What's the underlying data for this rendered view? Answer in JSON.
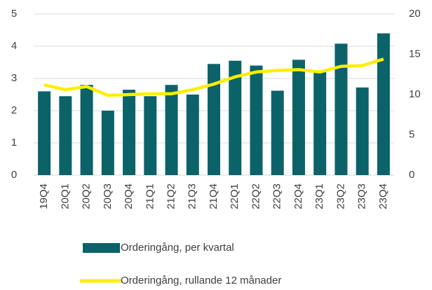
{
  "chart_data": {
    "type": "bar",
    "categories": [
      "19Q4",
      "20Q1",
      "20Q2",
      "20Q3",
      "20Q4",
      "21Q1",
      "21Q2",
      "21Q3",
      "21Q4",
      "22Q1",
      "22Q2",
      "22Q3",
      "22Q4",
      "23Q1",
      "23Q2",
      "23Q3",
      "23Q4"
    ],
    "series": [
      {
        "name": "Orderingång, per kvartal",
        "type": "bar",
        "color": "#0b6369",
        "values": [
          2.6,
          2.45,
          2.8,
          2.0,
          2.65,
          2.45,
          2.8,
          2.5,
          3.45,
          3.55,
          3.4,
          2.62,
          3.58,
          3.25,
          4.08,
          2.72,
          4.4
        ]
      },
      {
        "name": "Orderingång, rullande 12 månader",
        "type": "line",
        "axis": "y2",
        "color": "#ffee00",
        "values": [
          11.2,
          10.6,
          11.0,
          9.9,
          10.0,
          10.1,
          10.1,
          10.6,
          11.3,
          12.2,
          12.8,
          13.0,
          13.1,
          12.8,
          13.5,
          13.6,
          14.4
        ]
      }
    ],
    "ylim": [
      0,
      5
    ],
    "yticks": [
      0,
      1,
      2,
      3,
      4,
      5
    ],
    "y2lim": [
      0,
      20
    ],
    "y2ticks": [
      0,
      5,
      10,
      15,
      20
    ],
    "grid": true
  }
}
